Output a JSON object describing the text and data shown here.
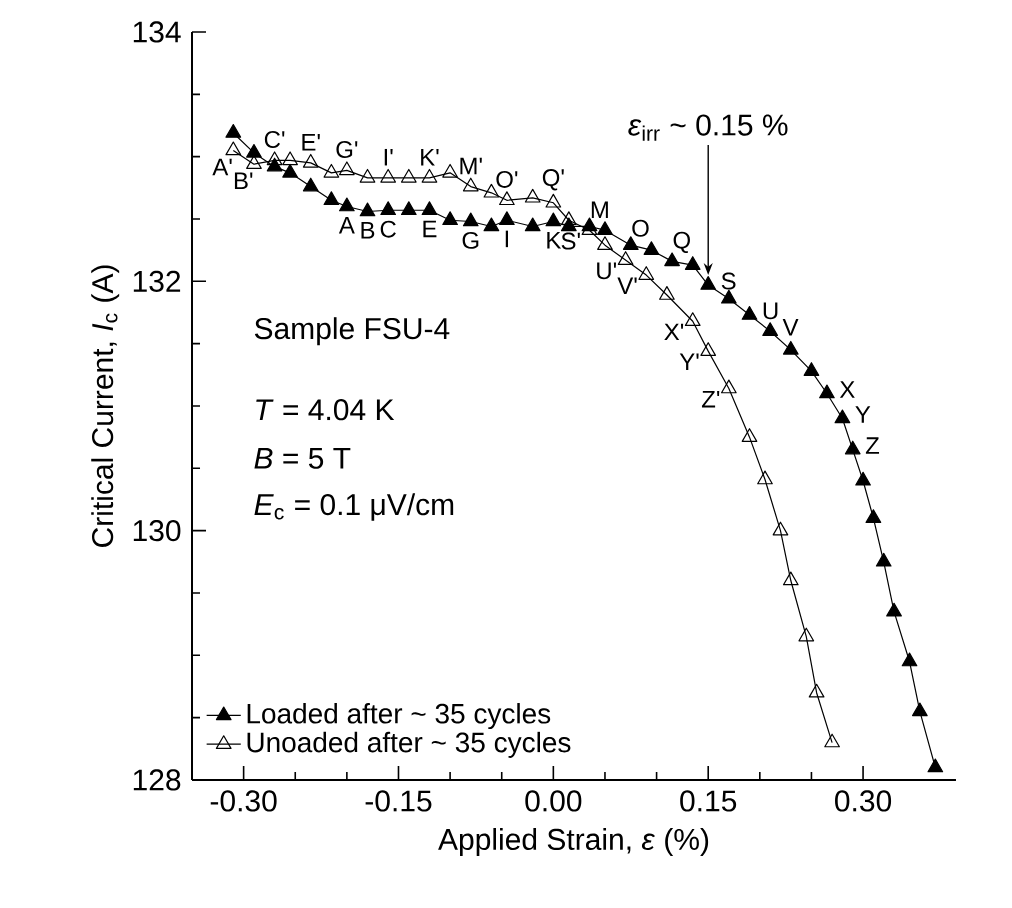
{
  "chart_data": {
    "type": "line",
    "xlabel": "Applied Strain, *ε* (%)",
    "ylabel": "Critical Current, *I*$_{c}$ (A)",
    "xlim": [
      -0.35,
      0.39
    ],
    "ylim": [
      128,
      134
    ],
    "xticks": [
      {
        "value": -0.3,
        "label": "-0.30"
      },
      {
        "value": -0.15,
        "label": "-0.15"
      },
      {
        "value": 0,
        "label": "0.00"
      },
      {
        "value": 0.15,
        "label": "0.15"
      },
      {
        "value": 0.3,
        "label": "0.30"
      }
    ],
    "yticks": [
      128,
      130,
      132,
      134
    ],
    "marker": "triangle",
    "line_style": "solid",
    "legend": "bottom left",
    "series": [
      {
        "name": "Loaded after ~ 35 cycles",
        "color": "#000000",
        "x": [
          -0.31,
          -0.29,
          -0.27,
          -0.255,
          -0.235,
          -0.215,
          -0.2,
          -0.18,
          -0.16,
          -0.14,
          -0.12,
          -0.1,
          -0.08,
          -0.06,
          -0.045,
          -0.02,
          0.0,
          0.015,
          0.035,
          0.05,
          0.075,
          0.095,
          0.115,
          0.135,
          0.15,
          0.17,
          0.19,
          0.21,
          0.23,
          0.25,
          0.265,
          0.28,
          0.29,
          0.3,
          0.31,
          0.32,
          0.33,
          0.345,
          0.355,
          0.37
        ],
        "values": [
          133.19,
          133.03,
          132.92,
          132.87,
          132.76,
          132.65,
          132.6,
          132.56,
          132.57,
          132.57,
          132.57,
          132.49,
          132.48,
          132.44,
          132.49,
          132.44,
          132.48,
          132.44,
          132.44,
          132.41,
          132.29,
          132.25,
          132.16,
          132.13,
          131.97,
          131.86,
          131.73,
          131.6,
          131.45,
          131.28,
          131.1,
          130.9,
          130.65,
          130.4,
          130.1,
          129.75,
          129.35,
          128.95,
          128.55,
          128.1
        ]
      },
      {
        "name": "Unoaded after ~ 35 cycles",
        "color": "#000000",
        "marker": "triangle-open",
        "x": [
          -0.31,
          -0.29,
          -0.27,
          -0.255,
          -0.235,
          -0.215,
          -0.2,
          -0.18,
          -0.16,
          -0.14,
          -0.12,
          -0.1,
          -0.08,
          -0.06,
          -0.045,
          -0.02,
          0.0,
          0.015,
          0.035,
          0.05,
          0.07,
          0.09,
          0.11,
          0.135,
          0.15,
          0.17,
          0.19,
          0.205,
          0.22,
          0.23,
          0.245,
          0.255,
          0.27
        ],
        "values": [
          133.05,
          132.94,
          132.97,
          132.97,
          132.95,
          132.87,
          132.89,
          132.83,
          132.83,
          132.83,
          132.83,
          132.87,
          132.76,
          132.71,
          132.65,
          132.67,
          132.63,
          132.49,
          132.41,
          132.29,
          132.17,
          132.05,
          131.89,
          131.68,
          131.44,
          131.14,
          130.75,
          130.41,
          130.0,
          129.6,
          129.15,
          128.7,
          128.3
        ]
      }
    ],
    "annotations": [
      "Sample FSU-4",
      "*T* = 4.04 K",
      "*B* = 5 T",
      "*E*$_{c}$ = 0.1 μV/cm",
      {
        "text": "A",
        "x": -0.2,
        "y": 132.6
      },
      {
        "text": "B",
        "x": -0.18,
        "y": 132.56
      },
      {
        "text": "C",
        "x": -0.16,
        "y": 132.57
      },
      {
        "text": "E",
        "x": -0.12,
        "y": 132.57
      },
      {
        "text": "G",
        "x": -0.08,
        "y": 132.48
      },
      {
        "text": "I",
        "x": -0.045,
        "y": 132.49
      },
      {
        "text": "K",
        "x": 0.0,
        "y": 132.48
      },
      {
        "text": "M",
        "x": 0.035,
        "y": 132.44
      },
      {
        "text": "O",
        "x": 0.075,
        "y": 132.29
      },
      {
        "text": "Q",
        "x": 0.115,
        "y": 132.16
      },
      {
        "text": "S",
        "x": 0.15,
        "y": 131.97
      },
      {
        "text": "U",
        "x": 0.19,
        "y": 131.73
      },
      {
        "text": "V",
        "x": 0.21,
        "y": 131.6
      },
      {
        "text": "X",
        "x": 0.265,
        "y": 131.1
      },
      {
        "text": "Y",
        "x": 0.28,
        "y": 130.9
      },
      {
        "text": "Z",
        "x": 0.29,
        "y": 130.65
      },
      {
        "text": "A'",
        "x": -0.31,
        "y": 133.05
      },
      {
        "text": "B'",
        "x": -0.29,
        "y": 132.94
      },
      {
        "text": "C'",
        "x": -0.27,
        "y": 132.97
      },
      {
        "text": "E'",
        "x": -0.235,
        "y": 132.95
      },
      {
        "text": "G'",
        "x": -0.2,
        "y": 132.89
      },
      {
        "text": "I'",
        "x": -0.16,
        "y": 132.83
      },
      {
        "text": "K'",
        "x": -0.12,
        "y": 132.83
      },
      {
        "text": "M'",
        "x": -0.08,
        "y": 132.76
      },
      {
        "text": "O'",
        "x": -0.045,
        "y": 132.65
      },
      {
        "text": "Q'",
        "x": 0.0,
        "y": 132.63
      },
      {
        "text": "S'",
        "x": 0.035,
        "y": 132.41
      },
      {
        "text": "U'",
        "x": 0.07,
        "y": 132.17
      },
      {
        "text": "V'",
        "x": 0.09,
        "y": 132.05
      },
      {
        "text": "X'",
        "x": 0.135,
        "y": 131.68
      },
      {
        "text": "Y'",
        "x": 0.15,
        "y": 131.44
      },
      {
        "text": "Z'",
        "x": 0.17,
        "y": 131.14
      },
      {
        "text": "*ε*$_{irr}$ ~ 0.15 %",
        "x": 0.15,
        "y": 131.97
      }
    ]
  }
}
